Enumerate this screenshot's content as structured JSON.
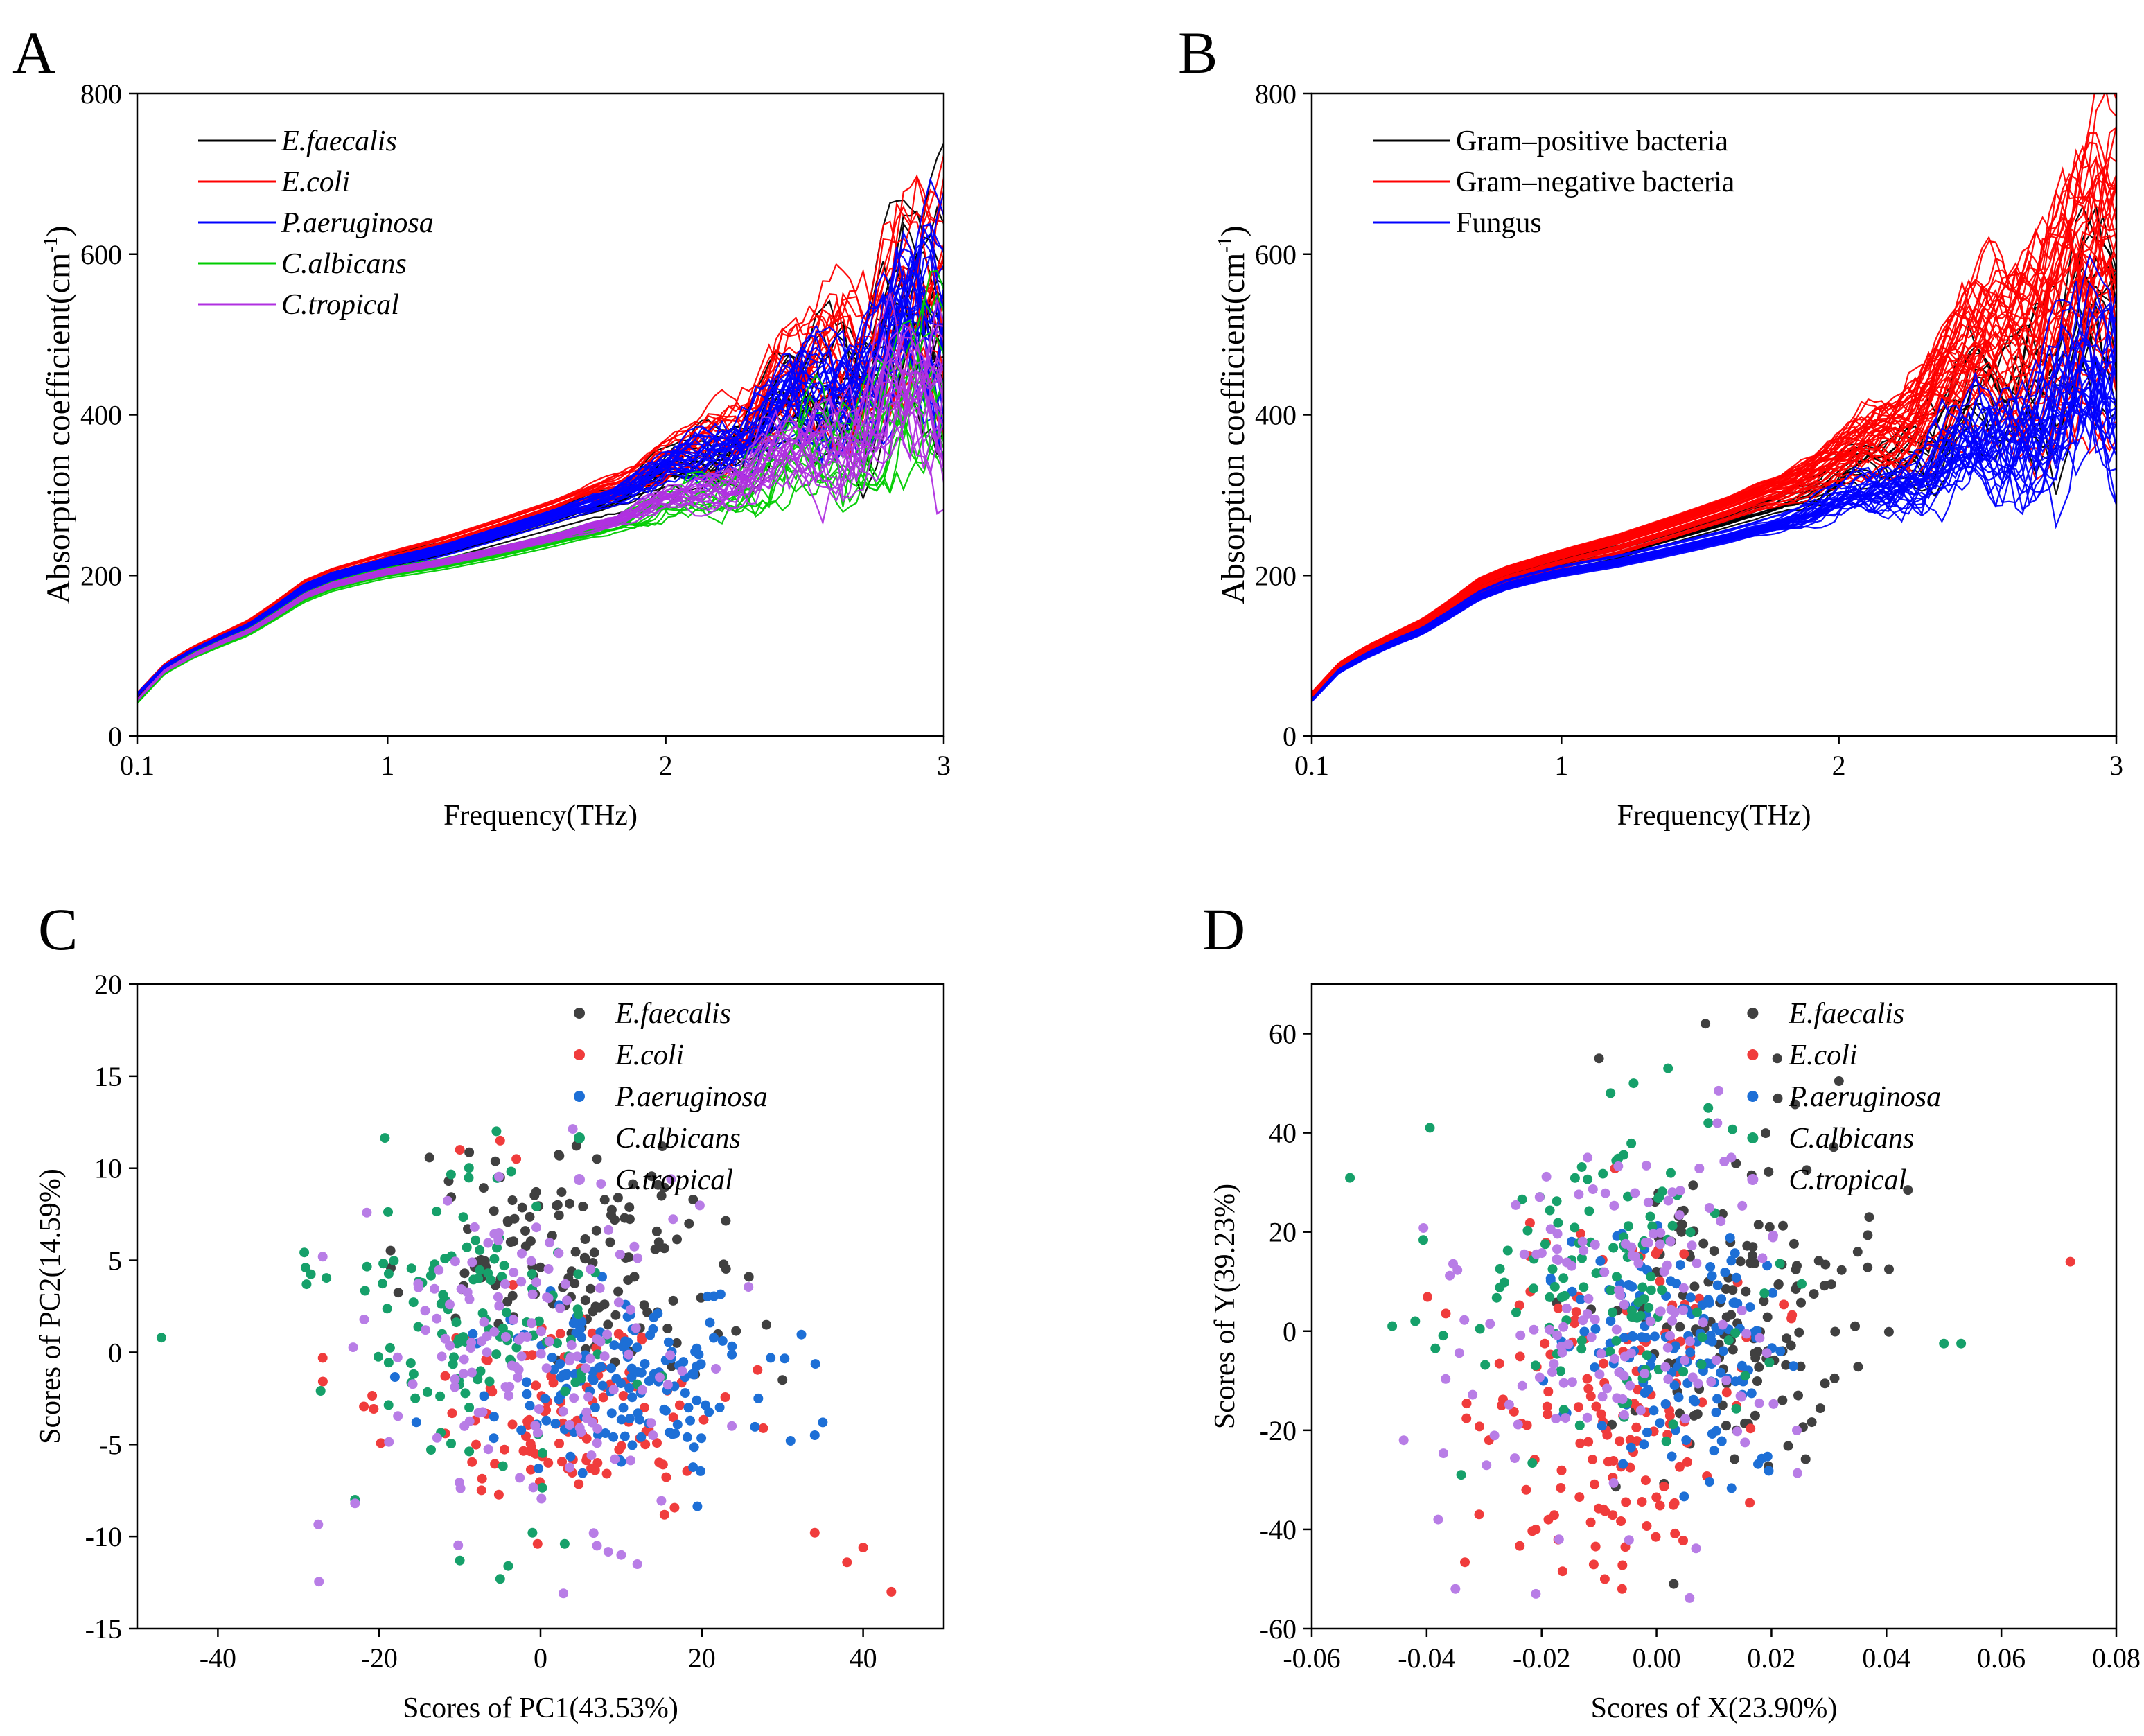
{
  "figure": {
    "panels": [
      "A",
      "B",
      "C",
      "D"
    ]
  },
  "chart_data": [
    {
      "id": "A",
      "type": "line",
      "panel_label": "A",
      "xlabel": "Frequency(THz)",
      "ylabel_main": "Absorption    coefficient(cm",
      "ylabel_sup": "-1",
      "ylabel_end": ")",
      "xlim": [
        0.1,
        3
      ],
      "ylim": [
        0,
        800
      ],
      "x_ticks": [
        0.1,
        1,
        2,
        3
      ],
      "x_tick_labels": [
        "0.1",
        "1",
        "2",
        "3"
      ],
      "y_ticks": [
        0,
        200,
        400,
        600,
        800
      ],
      "y_tick_labels": [
        "0",
        "200",
        "400",
        "600",
        "800"
      ],
      "legend_position": "top-left",
      "legend_italic": true,
      "series": [
        {
          "name": "E.faecalis",
          "color": "#000000",
          "n_curves": 14,
          "base_x": [
            0.1,
            0.2,
            0.3,
            0.4,
            0.5,
            0.6,
            0.7,
            0.8,
            0.9,
            1.0,
            1.2,
            1.4,
            1.6,
            1.8,
            2.0,
            2.2,
            2.4,
            2.6,
            2.8,
            3.0
          ],
          "base_y": [
            50,
            85,
            105,
            120,
            135,
            158,
            182,
            196,
            205,
            213,
            228,
            248,
            268,
            290,
            320,
            345,
            380,
            420,
            460,
            500
          ],
          "spread": 0.12
        },
        {
          "name": "E.coli",
          "color": "#ff0000",
          "n_curves": 18,
          "base_x": [
            0.1,
            0.2,
            0.3,
            0.4,
            0.5,
            0.6,
            0.7,
            0.8,
            0.9,
            1.0,
            1.2,
            1.4,
            1.6,
            1.8,
            2.0,
            2.2,
            2.4,
            2.6,
            2.8,
            3.0
          ],
          "base_y": [
            52,
            88,
            108,
            124,
            140,
            163,
            188,
            202,
            212,
            222,
            240,
            262,
            285,
            312,
            345,
            380,
            430,
            480,
            520,
            560
          ],
          "spread": 0.12
        },
        {
          "name": "P.aeruginosa",
          "color": "#0000ff",
          "n_curves": 26,
          "base_x": [
            0.1,
            0.2,
            0.3,
            0.4,
            0.5,
            0.6,
            0.7,
            0.8,
            0.9,
            1.0,
            1.2,
            1.4,
            1.6,
            1.8,
            2.0,
            2.2,
            2.4,
            2.6,
            2.8,
            3.0
          ],
          "base_y": [
            52,
            87,
            106,
            122,
            137,
            160,
            185,
            199,
            208,
            217,
            233,
            254,
            276,
            300,
            332,
            362,
            400,
            440,
            480,
            520
          ],
          "spread": 0.1
        },
        {
          "name": "C.albicans",
          "color": "#00cc00",
          "n_curves": 12,
          "base_x": [
            0.1,
            0.2,
            0.3,
            0.4,
            0.5,
            0.6,
            0.7,
            0.8,
            0.9,
            1.0,
            1.2,
            1.4,
            1.6,
            1.8,
            2.0,
            2.2,
            2.4,
            2.6,
            2.8,
            3.0
          ],
          "base_y": [
            42,
            80,
            100,
            115,
            129,
            150,
            172,
            186,
            195,
            203,
            214,
            228,
            244,
            262,
            285,
            305,
            330,
            360,
            390,
            420
          ],
          "spread": 0.1
        },
        {
          "name": "C.tropical",
          "color": "#b030e0",
          "n_curves": 20,
          "base_x": [
            0.1,
            0.2,
            0.3,
            0.4,
            0.5,
            0.6,
            0.7,
            0.8,
            0.9,
            1.0,
            1.2,
            1.4,
            1.6,
            1.8,
            2.0,
            2.2,
            2.4,
            2.6,
            2.8,
            3.0
          ],
          "base_y": [
            45,
            82,
            101,
            117,
            131,
            152,
            175,
            189,
            198,
            206,
            218,
            233,
            249,
            268,
            292,
            314,
            340,
            370,
            400,
            430
          ],
          "spread": 0.09
        }
      ]
    },
    {
      "id": "B",
      "type": "line",
      "panel_label": "B",
      "xlabel": "Frequency(THz)",
      "ylabel_main": "Absorption    coefficient(cm",
      "ylabel_sup": "-1",
      "ylabel_end": ")",
      "xlim": [
        0.1,
        3
      ],
      "ylim": [
        0,
        800
      ],
      "x_ticks": [
        0.1,
        1,
        2,
        3
      ],
      "x_tick_labels": [
        "0.1",
        "1",
        "2",
        "3"
      ],
      "y_ticks": [
        0,
        200,
        400,
        600,
        800
      ],
      "y_tick_labels": [
        "0",
        "200",
        "400",
        "600",
        "800"
      ],
      "legend_position": "top-left",
      "legend_italic": false,
      "series": [
        {
          "name": "Gram–positive bacteria",
          "color": "#000000",
          "n_curves": 12,
          "base_x": [
            0.1,
            0.2,
            0.3,
            0.4,
            0.5,
            0.6,
            0.7,
            0.8,
            0.9,
            1.0,
            1.2,
            1.4,
            1.6,
            1.8,
            2.0,
            2.2,
            2.4,
            2.6,
            2.8,
            3.0
          ],
          "base_y": [
            50,
            85,
            105,
            120,
            135,
            158,
            182,
            196,
            205,
            213,
            228,
            248,
            268,
            290,
            320,
            345,
            380,
            420,
            460,
            500
          ],
          "spread": 0.12
        },
        {
          "name": "Gram–negative bacteria",
          "color": "#ff0000",
          "n_curves": 40,
          "base_x": [
            0.1,
            0.2,
            0.3,
            0.4,
            0.5,
            0.6,
            0.7,
            0.8,
            0.9,
            1.0,
            1.2,
            1.4,
            1.6,
            1.8,
            2.0,
            2.2,
            2.4,
            2.6,
            2.8,
            3.0
          ],
          "base_y": [
            52,
            88,
            108,
            124,
            140,
            163,
            188,
            202,
            212,
            222,
            240,
            262,
            285,
            312,
            345,
            385,
            445,
            500,
            540,
            580
          ],
          "spread": 0.14
        },
        {
          "name": "Fungus",
          "color": "#0000ff",
          "n_curves": 30,
          "base_x": [
            0.1,
            0.2,
            0.3,
            0.4,
            0.5,
            0.6,
            0.7,
            0.8,
            0.9,
            1.0,
            1.2,
            1.4,
            1.6,
            1.8,
            2.0,
            2.2,
            2.4,
            2.6,
            2.8,
            3.0
          ],
          "base_y": [
            44,
            81,
            100,
            116,
            130,
            151,
            173,
            187,
            196,
            204,
            216,
            231,
            247,
            265,
            288,
            310,
            335,
            365,
            395,
            425
          ],
          "spread": 0.1
        }
      ]
    },
    {
      "id": "C",
      "type": "scatter",
      "panel_label": "C",
      "xlabel": "Scores of PC1(43.53%)",
      "ylabel": "Scores of PC2(14.59%)",
      "xlim": [
        -50,
        50
      ],
      "ylim": [
        -15,
        20
      ],
      "x_ticks": [
        -40,
        -20,
        0,
        20,
        40
      ],
      "x_tick_labels": [
        "-40",
        "-20",
        "0",
        "20",
        "40"
      ],
      "y_ticks": [
        -15,
        -10,
        -5,
        0,
        5,
        10,
        15,
        20
      ],
      "y_tick_labels": [
        "-15",
        "-10",
        "-5",
        "0",
        "5",
        "10",
        "15",
        "20"
      ],
      "legend_position": "top-right",
      "legend_italic": true,
      "series": [
        {
          "name": "E.faecalis",
          "color": "#404040",
          "n_points": 130,
          "center": [
            3,
            5
          ],
          "sd": [
            9,
            2.8
          ],
          "extra_points": [
            [
              28,
              1.5
            ],
            [
              30,
              -1.5
            ],
            [
              22,
              1
            ],
            [
              15,
              8.5
            ],
            [
              7,
              10.5
            ],
            [
              -5,
              9.5
            ]
          ]
        },
        {
          "name": "E.coli",
          "color": "#f03c3c",
          "n_points": 120,
          "center": [
            5,
            -3.5
          ],
          "sd": [
            11,
            2.6
          ],
          "extra_points": [
            [
              -10,
              11
            ],
            [
              -5,
              11.5
            ],
            [
              -3,
              10.5
            ],
            [
              34,
              -9.8
            ],
            [
              38,
              -11.4
            ],
            [
              40,
              -10.6
            ],
            [
              43.5,
              -13
            ],
            [
              -27,
              -0.3
            ]
          ]
        },
        {
          "name": "P.aeruginosa",
          "color": "#1d6fd6",
          "n_points": 160,
          "center": [
            10,
            -1.5
          ],
          "sd": [
            8,
            2.2
          ],
          "extra_points": [
            [
              34,
              -4.5
            ],
            [
              35,
              -3.8
            ],
            [
              31,
              -4.8
            ],
            [
              27,
              -2.5
            ]
          ]
        },
        {
          "name": "C.albicans",
          "color": "#16a06a",
          "n_points": 120,
          "center": [
            -8,
            1.5
          ],
          "sd": [
            9,
            3.8
          ],
          "extra_points": [
            [
              -47,
              0.8
            ],
            [
              -29,
              3.7
            ],
            [
              -23,
              -8
            ],
            [
              -10,
              -11.3
            ],
            [
              -5,
              -12.3
            ],
            [
              -4,
              -11.6
            ],
            [
              -1,
              -9.8
            ],
            [
              3,
              -10.4
            ]
          ]
        },
        {
          "name": "C.tropical",
          "color": "#b87de6",
          "n_points": 150,
          "center": [
            -2,
            0
          ],
          "sd": [
            10,
            4.5
          ],
          "extra_points": [
            [
              -27,
              5.2
            ],
            [
              -23,
              -8.2
            ],
            [
              12,
              -11.5
            ],
            [
              10,
              -11
            ],
            [
              7,
              -10.5
            ]
          ]
        }
      ]
    },
    {
      "id": "D",
      "type": "scatter",
      "panel_label": "D",
      "xlabel": "Scores of X(23.90%)",
      "ylabel": "Scores of Y(39.23%)",
      "xlim": [
        -0.06,
        0.08
      ],
      "ylim": [
        -60,
        70
      ],
      "x_ticks": [
        -0.06,
        -0.04,
        -0.02,
        0.0,
        0.02,
        0.04,
        0.06,
        0.08
      ],
      "x_tick_labels": [
        "-0.06",
        "-0.04",
        "-0.02",
        "0.00",
        "0.02",
        "0.04",
        "0.06",
        "0.08"
      ],
      "y_ticks": [
        -60,
        -40,
        -20,
        0,
        20,
        40,
        60
      ],
      "y_tick_labels": [
        "-60",
        "-40",
        "-20",
        "0",
        "20",
        "40",
        "60"
      ],
      "legend_position": "top-right",
      "legend_italic": true,
      "series": [
        {
          "name": "E.faecalis",
          "color": "#404040",
          "n_points": 140,
          "center": [
            0.014,
            5
          ],
          "sd": [
            0.011,
            17
          ],
          "extra_points": [
            [
              0.0085,
              62
            ],
            [
              -0.01,
              55
            ],
            [
              0.021,
              55
            ],
            [
              0.003,
              -51
            ],
            [
              0.037,
              23
            ],
            [
              0.035,
              16
            ]
          ]
        },
        {
          "name": "E.coli",
          "color": "#f03c3c",
          "n_points": 150,
          "center": [
            -0.006,
            -14
          ],
          "sd": [
            0.013,
            17
          ],
          "extra_points": [
            [
              0.072,
              14
            ],
            [
              -0.006,
              -52
            ],
            [
              -0.009,
              -50
            ],
            [
              -0.021,
              -40
            ]
          ]
        },
        {
          "name": "P.aeruginosa",
          "color": "#1d6fd6",
          "n_points": 150,
          "center": [
            0.004,
            -2
          ],
          "sd": [
            0.009,
            12
          ],
          "extra_points": []
        },
        {
          "name": "C.albicans",
          "color": "#16a06a",
          "n_points": 120,
          "center": [
            -0.006,
            10
          ],
          "sd": [
            0.013,
            15
          ],
          "extra_points": [
            [
              -0.046,
              1
            ],
            [
              -0.042,
              2
            ],
            [
              0.05,
              -2.5
            ],
            [
              0.053,
              -2.5
            ],
            [
              -0.008,
              48
            ],
            [
              -0.004,
              50
            ],
            [
              0.002,
              53
            ],
            [
              0.009,
              45
            ],
            [
              0.009,
              42
            ],
            [
              -0.034,
              -29
            ]
          ]
        },
        {
          "name": "C.tropical",
          "color": "#b87de6",
          "n_points": 150,
          "center": [
            -0.005,
            2
          ],
          "sd": [
            0.014,
            18
          ],
          "extra_points": [
            [
              -0.044,
              -22
            ],
            [
              -0.038,
              -38
            ],
            [
              -0.035,
              -52
            ],
            [
              -0.021,
              -53
            ],
            [
              -0.012,
              35
            ],
            [
              0.013,
              35
            ]
          ]
        }
      ]
    }
  ]
}
